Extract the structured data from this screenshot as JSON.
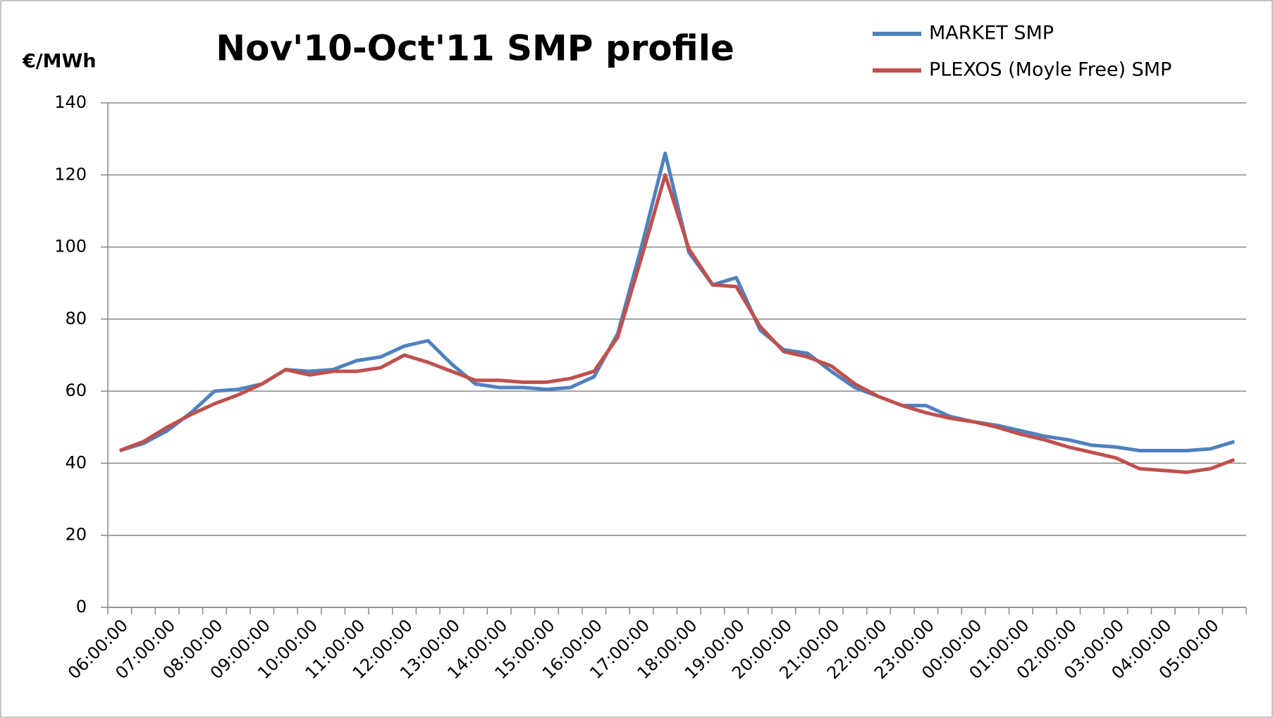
{
  "chart_data": {
    "type": "line",
    "title": "Nov'10-Oct'11  SMP profile",
    "y_label": "€/MWh",
    "categories": [
      "06:00:00",
      null,
      "07:00:00",
      null,
      "08:00:00",
      null,
      "09:00:00",
      null,
      "10:00:00",
      null,
      "11:00:00",
      null,
      "12:00:00",
      null,
      "13:00:00",
      null,
      "14:00:00",
      null,
      "15:00:00",
      null,
      "16:00:00",
      null,
      "17:00:00",
      null,
      "18:00:00",
      null,
      "19:00:00",
      null,
      "20:00:00",
      null,
      "21:00:00",
      null,
      "22:00:00",
      null,
      "23:00:00",
      null,
      "00:00:00",
      null,
      "01:00:00",
      null,
      "02:00:00",
      null,
      "03:00:00",
      null,
      "04:00:00",
      null,
      "05:00:00",
      null
    ],
    "series": [
      {
        "name": "MARKET SMP",
        "color": "#4f81bd",
        "values": [
          43.5,
          45.5,
          49,
          54,
          60,
          60.5,
          62,
          66,
          65.5,
          66,
          68.5,
          69.5,
          72.5,
          74,
          67.5,
          62,
          61,
          61,
          60.5,
          61,
          64,
          76,
          100,
          126,
          98.5,
          89.5,
          91.5,
          77,
          71.5,
          70.5,
          65.5,
          61,
          58.5,
          56,
          56,
          53,
          51.5,
          50.5,
          49,
          47.5,
          46.5,
          45,
          44.5,
          43.5,
          43.5,
          43.5,
          44,
          46
        ]
      },
      {
        "name": "PLEXOS (Moyle Free) SMP",
        "color": "#c0504d",
        "values": [
          43.5,
          46,
          50,
          53.5,
          56.5,
          59,
          62,
          66,
          64.5,
          65.5,
          65.5,
          66.5,
          70,
          68,
          65.5,
          63,
          63,
          62.5,
          62.5,
          63.5,
          65.5,
          75,
          97,
          120,
          99.5,
          89.5,
          89,
          78,
          71,
          69.5,
          67,
          62,
          58.5,
          56,
          54,
          52.5,
          51.5,
          50,
          48,
          46.5,
          44.5,
          43,
          41.5,
          38.5,
          38,
          37.5,
          38.5,
          41
        ]
      }
    ],
    "ylim": [
      0,
      140
    ],
    "yticks": [
      0,
      20,
      40,
      60,
      80,
      100,
      120,
      140
    ],
    "grid": true,
    "legend": "top-right"
  }
}
